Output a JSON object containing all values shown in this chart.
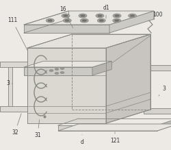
{
  "bg_color": "#ede9e4",
  "line_color": "#888880",
  "line_width": 0.65,
  "face_front": "#dbd8d2",
  "face_right": "#c8c5c0",
  "face_top": "#e4e1dc",
  "face_plate_top": "#e8e5e0",
  "face_plate_side": "#cccac5",
  "figsize": [
    2.5,
    2.19
  ],
  "dpi": 100
}
